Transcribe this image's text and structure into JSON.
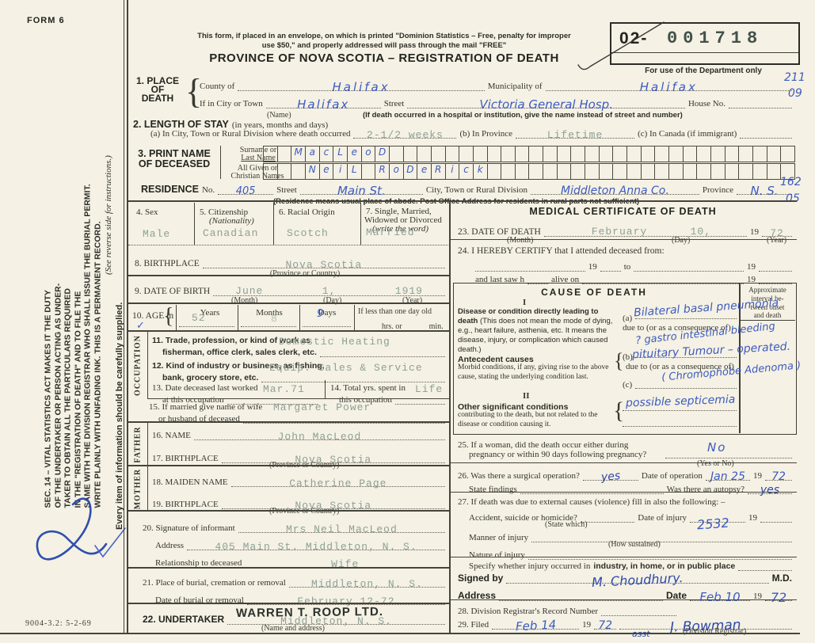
{
  "corner": {
    "form_no": "FORM 6",
    "doc_code": "9004-3.2: 5-2-69"
  },
  "margin": {
    "lines": [
      "SEC. 14 – VITAL STATISTICS ACT MAKES IT THE DUTY",
      "OF THE UNDERTAKER OR PERSON ACTING AS UNDER-",
      "TAKER TO OBTAIN ALL THE PARTICULARS REQUIRED",
      "IN THE \"REGISTRATION OF DEATH\" AND TO FILE THE",
      "SAME WITH THE DIVISION REGISTRAR WHO SHALL ISSUE THE BURIAL PERMIT.",
      "WRITE PLAINLY WITH UNFADING INK. THIS IS A PERMANENT RECORD."
    ],
    "see_reverse": "(See reverse side for instructions.)",
    "every_item": "Every item of information should be carefully supplied."
  },
  "header": {
    "mail1": "This form, if placed in an envelope, on which is printed \"Dominion Statistics – Free, penalty for improper",
    "mail2": "use $50,\" and properly addressed will pass through the mail \"FREE\"",
    "title": "PROVINCE OF NOVA SCOTIA – REGISTRATION OF DEATH"
  },
  "stamp": {
    "prefix": "02-",
    "number": "001718",
    "caption": "For use of the Department only",
    "code_top": "211",
    "code_bottom": "09"
  },
  "glyphs": {
    "brace": "{",
    "check": "✓"
  },
  "s1": {
    "label1": "1. PLACE",
    "label2": "OF",
    "label3": "DEATH",
    "county_label": "County of",
    "county": "Halifax",
    "municipality_label": "Municipality of",
    "municipality": "Halifax",
    "city_label": "If in City or Town",
    "city": "Halifax",
    "name_note": "(Name)",
    "street_label": "Street",
    "street": "Victoria General Hosp.",
    "house_label": "House No.",
    "house": "",
    "hospital_note": "(If death occurred in a hospital or institution, give the name instead of street and number)"
  },
  "s2": {
    "label": "2. LENGTH OF STAY",
    "sub": "(in years, months and days)",
    "a_label": "(a) In City, Town or Rural Division where death occurred",
    "a": "2-1/2 weeks",
    "b_label": "(b) In Province",
    "b": "Lifetime",
    "c_label": "(c) In Canada (if immigrant)",
    "c": ""
  },
  "s3": {
    "label1": "3. PRINT NAME",
    "label2": "OF DECEASED",
    "surname_label1": "Surname or",
    "surname_label2": "Last Name",
    "given_label1": "All Given or",
    "given_label2": "Christian Names",
    "surname_boxes": "  MacLeoD",
    "given_boxes": "   NeiL RoDeRick"
  },
  "res": {
    "label": "RESIDENCE",
    "no_label": "No.",
    "no": "405",
    "street_label": "Street",
    "street": "Main St.",
    "city_label": "City, Town or Rural Division",
    "city": "Middleton Anna Co.",
    "province_label": "Province",
    "province": "N. S.",
    "note": "(Residence means usual place of abode. Post Office Address for residents in rural parts not sufficient)",
    "code_top": "162",
    "code_bottom": "05"
  },
  "s4": {
    "label": "4. Sex",
    "value": "Male"
  },
  "s5": {
    "label": "5. Citizenship",
    "sub": "(Nationality)",
    "value": "Canadian"
  },
  "s6": {
    "label": "6. Racial Origin",
    "value": "Scotch"
  },
  "s7": {
    "label1": "7. Single, Married,",
    "label2": "Widowed or Divorced",
    "sub": "(write the word)",
    "value": "Married"
  },
  "s8": {
    "label": "8. BIRTHPLACE",
    "value": "Nova Scotia",
    "note": "(Province or Country)"
  },
  "s9": {
    "label": "9. DATE OF BIRTH",
    "month": "June",
    "day": "1,",
    "year": "1919",
    "month_note": "(Month)",
    "day_note": "(Day)",
    "year_note": "(Year)"
  },
  "s10": {
    "label": "10. AGE in",
    "years_label": "Years",
    "years": "52",
    "months_label": "Months",
    "months": "8",
    "days_label": "Days",
    "days": "9",
    "less_label": "If less than one day old",
    "hrs_label": "hrs. or",
    "min_label": "min."
  },
  "occ": {
    "vertical": "OCCUPATION"
  },
  "s11": {
    "label1": "11. Trade, profession, or kind of work as",
    "label2": "fisherman, office clerk, sales clerk, etc.",
    "value": "Domestic Heating"
  },
  "s12": {
    "label1": "12. Kind of industry or business, as fishing,",
    "label2": "bank, grocery store, etc.",
    "value": "Equip. Sales & Service"
  },
  "s13": {
    "label1": "13. Date deceased last worked",
    "label2": "at this occupation",
    "value": "Mar.71"
  },
  "s14": {
    "label1": "14. Total yrs. spent in",
    "label2": "this occupation",
    "value": "Life"
  },
  "s15": {
    "label1": "15. If married give name of wife",
    "label2": "or husband of deceased",
    "value": "Margaret Power"
  },
  "father": {
    "vertical": "FATHER"
  },
  "s16": {
    "label": "16. NAME",
    "value": "John MacLeod"
  },
  "s17": {
    "label": "17. BIRTHPLACE",
    "value": "Nova Scotia",
    "note": "(Province or Country)"
  },
  "mother": {
    "vertical": "MOTHER"
  },
  "s18": {
    "label": "18. MAIDEN NAME",
    "value": "Catherine Page"
  },
  "s19": {
    "label": "19. BIRTHPLACE",
    "value": "Nova Scotia",
    "note": "(Province or Country)"
  },
  "s20": {
    "label": "20. Signature of informant",
    "value": "Mrs Neil MacLeod",
    "address_label": "Address",
    "address": "405 Main St. Middleton, N. S.",
    "rel_label": "Relationship to deceased",
    "rel": "Wife"
  },
  "s21": {
    "label": "21. Place of burial, cremation or removal",
    "value": "Middleton, N. S.",
    "date_label": "Date of burial or removal",
    "date": "February 12-72"
  },
  "s22": {
    "label": "22. UNDERTAKER",
    "stamp": "WARREN T. ROOP LTD.",
    "value": "Middleton, N. S.",
    "note": "(Name and address)"
  },
  "med": {
    "title": "MEDICAL CERTIFICATE OF DEATH"
  },
  "s23": {
    "label": "23. DATE OF DEATH",
    "month": "February",
    "day": "10,",
    "nineteen": "19",
    "year": "72",
    "month_note": "(Month)",
    "day_note": "(Day)",
    "year_note": "(Year)"
  },
  "s24": {
    "line1": "24. I HEREBY CERTIFY that I attended deceased from:",
    "nineteen": "19",
    "to": "to",
    "last": "and last saw h",
    "alive": "alive on"
  },
  "cause": {
    "title": "CAUSE OF DEATH",
    "interval_lines": [
      "Approximate",
      "interval be-",
      "tween onset",
      "and death"
    ],
    "roman1": "I",
    "disease_bold": "Disease or condition directly leading to death",
    "disease_rest": "(This does not mean the mode of dying, e.g., heart failure, asthenia, etc. It means the disease, injury, or complication which caused death.)",
    "a_label": "(a)",
    "a": "Bilateral basal pneumonia",
    "due": "due to (or as a consequence of)",
    "a_due": "? gastro intestinal bleeding",
    "b_label": "(b)",
    "b": "pituitary Tumour – operated.",
    "b_due": "( Chromophobe Adenoma )",
    "c_label": "(c)",
    "c": "",
    "antecedent_bold": "Antecedent causes",
    "antecedent_text": "Morbid conditions, if any, giving rise to the above cause, stating the underlying condition last.",
    "roman2": "II",
    "other_bold": "Other significant conditions",
    "other_text": "contributing to the death, but not related to the disease or condition causing it.",
    "other_value": "possible septicemia"
  },
  "s25": {
    "line1": "25. If a woman, did the death occur either during",
    "line2": "pregnancy or within 90 days following pregnancy?",
    "value": "No",
    "note": "(Yes or No)"
  },
  "s26": {
    "q1": "26. Was there a surgical operation?",
    "q1_value": "yes",
    "q2": "Date of operation",
    "q2_value": "Jan 25",
    "nineteen": "19",
    "year": "72",
    "findings_label": "State findings",
    "autopsy_label": "Was there an autopsy?",
    "autopsy_value": "yes"
  },
  "s27": {
    "intro": "27. If death was due to external causes (violence) fill in also the following: –",
    "acc_label": "Accident, suicide or homicide?",
    "state_which": "(State which)",
    "date_label": "Date of injury",
    "nineteen": "19",
    "manner_label": "Manner of injury",
    "how": "(How sustained)",
    "code": "2532",
    "nature_label": "Nature of injury",
    "specify_pre": "Specify whether injury occurred in",
    "specify_bold": "industry, in home, or in public place"
  },
  "sig": {
    "label": "Signed by",
    "signature": "M. Choudhury.",
    "md": "M.D.",
    "address_label": "Address",
    "date_label": "Date",
    "date": "Feb 10",
    "nineteen": "19",
    "year": "72"
  },
  "s28": {
    "label": "28. Division Registrar's Record Number"
  },
  "s29": {
    "label": "29. Filed",
    "date": "Feb 14",
    "nineteen": "19",
    "year": "72",
    "registrar_prefix": "asst",
    "registrar_sig": "J. Bowman",
    "note": "(Division Registrar)"
  }
}
